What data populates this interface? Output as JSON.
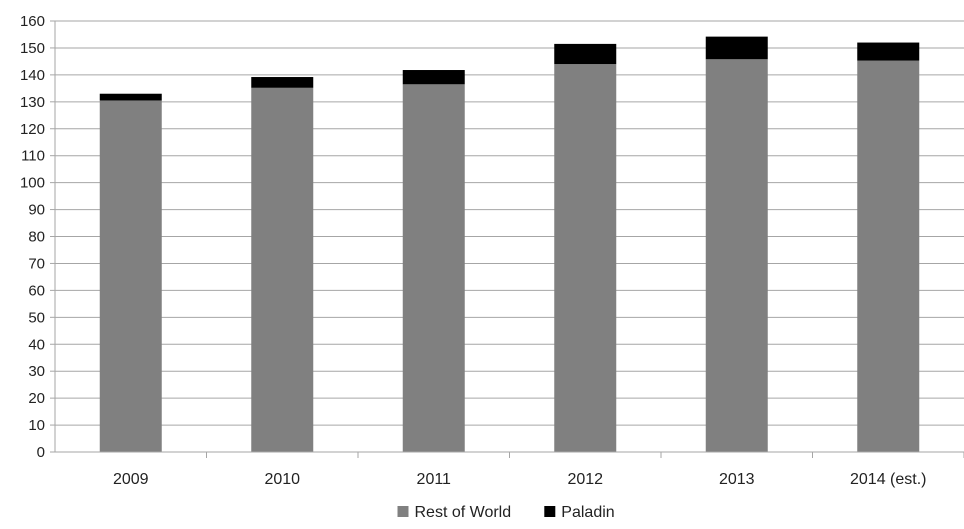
{
  "chart_data": {
    "type": "bar",
    "stacked": true,
    "categories": [
      "2009",
      "2010",
      "2011",
      "2012",
      "2013",
      "2014 (est.)"
    ],
    "series": [
      {
        "name": "Rest of World",
        "color": "#808080",
        "values": [
          130.5,
          135.2,
          136.5,
          144.0,
          145.8,
          145.3
        ]
      },
      {
        "name": "Paladin",
        "color": "#000000",
        "values": [
          2.5,
          4.0,
          5.3,
          7.5,
          8.4,
          6.7
        ]
      }
    ],
    "ylim": [
      0,
      160
    ],
    "yticks": [
      0,
      10,
      20,
      30,
      40,
      50,
      60,
      70,
      80,
      90,
      100,
      110,
      120,
      130,
      140,
      150,
      160
    ],
    "grid": true,
    "legend_position": "bottom",
    "title": "",
    "xlabel": "",
    "ylabel": ""
  }
}
